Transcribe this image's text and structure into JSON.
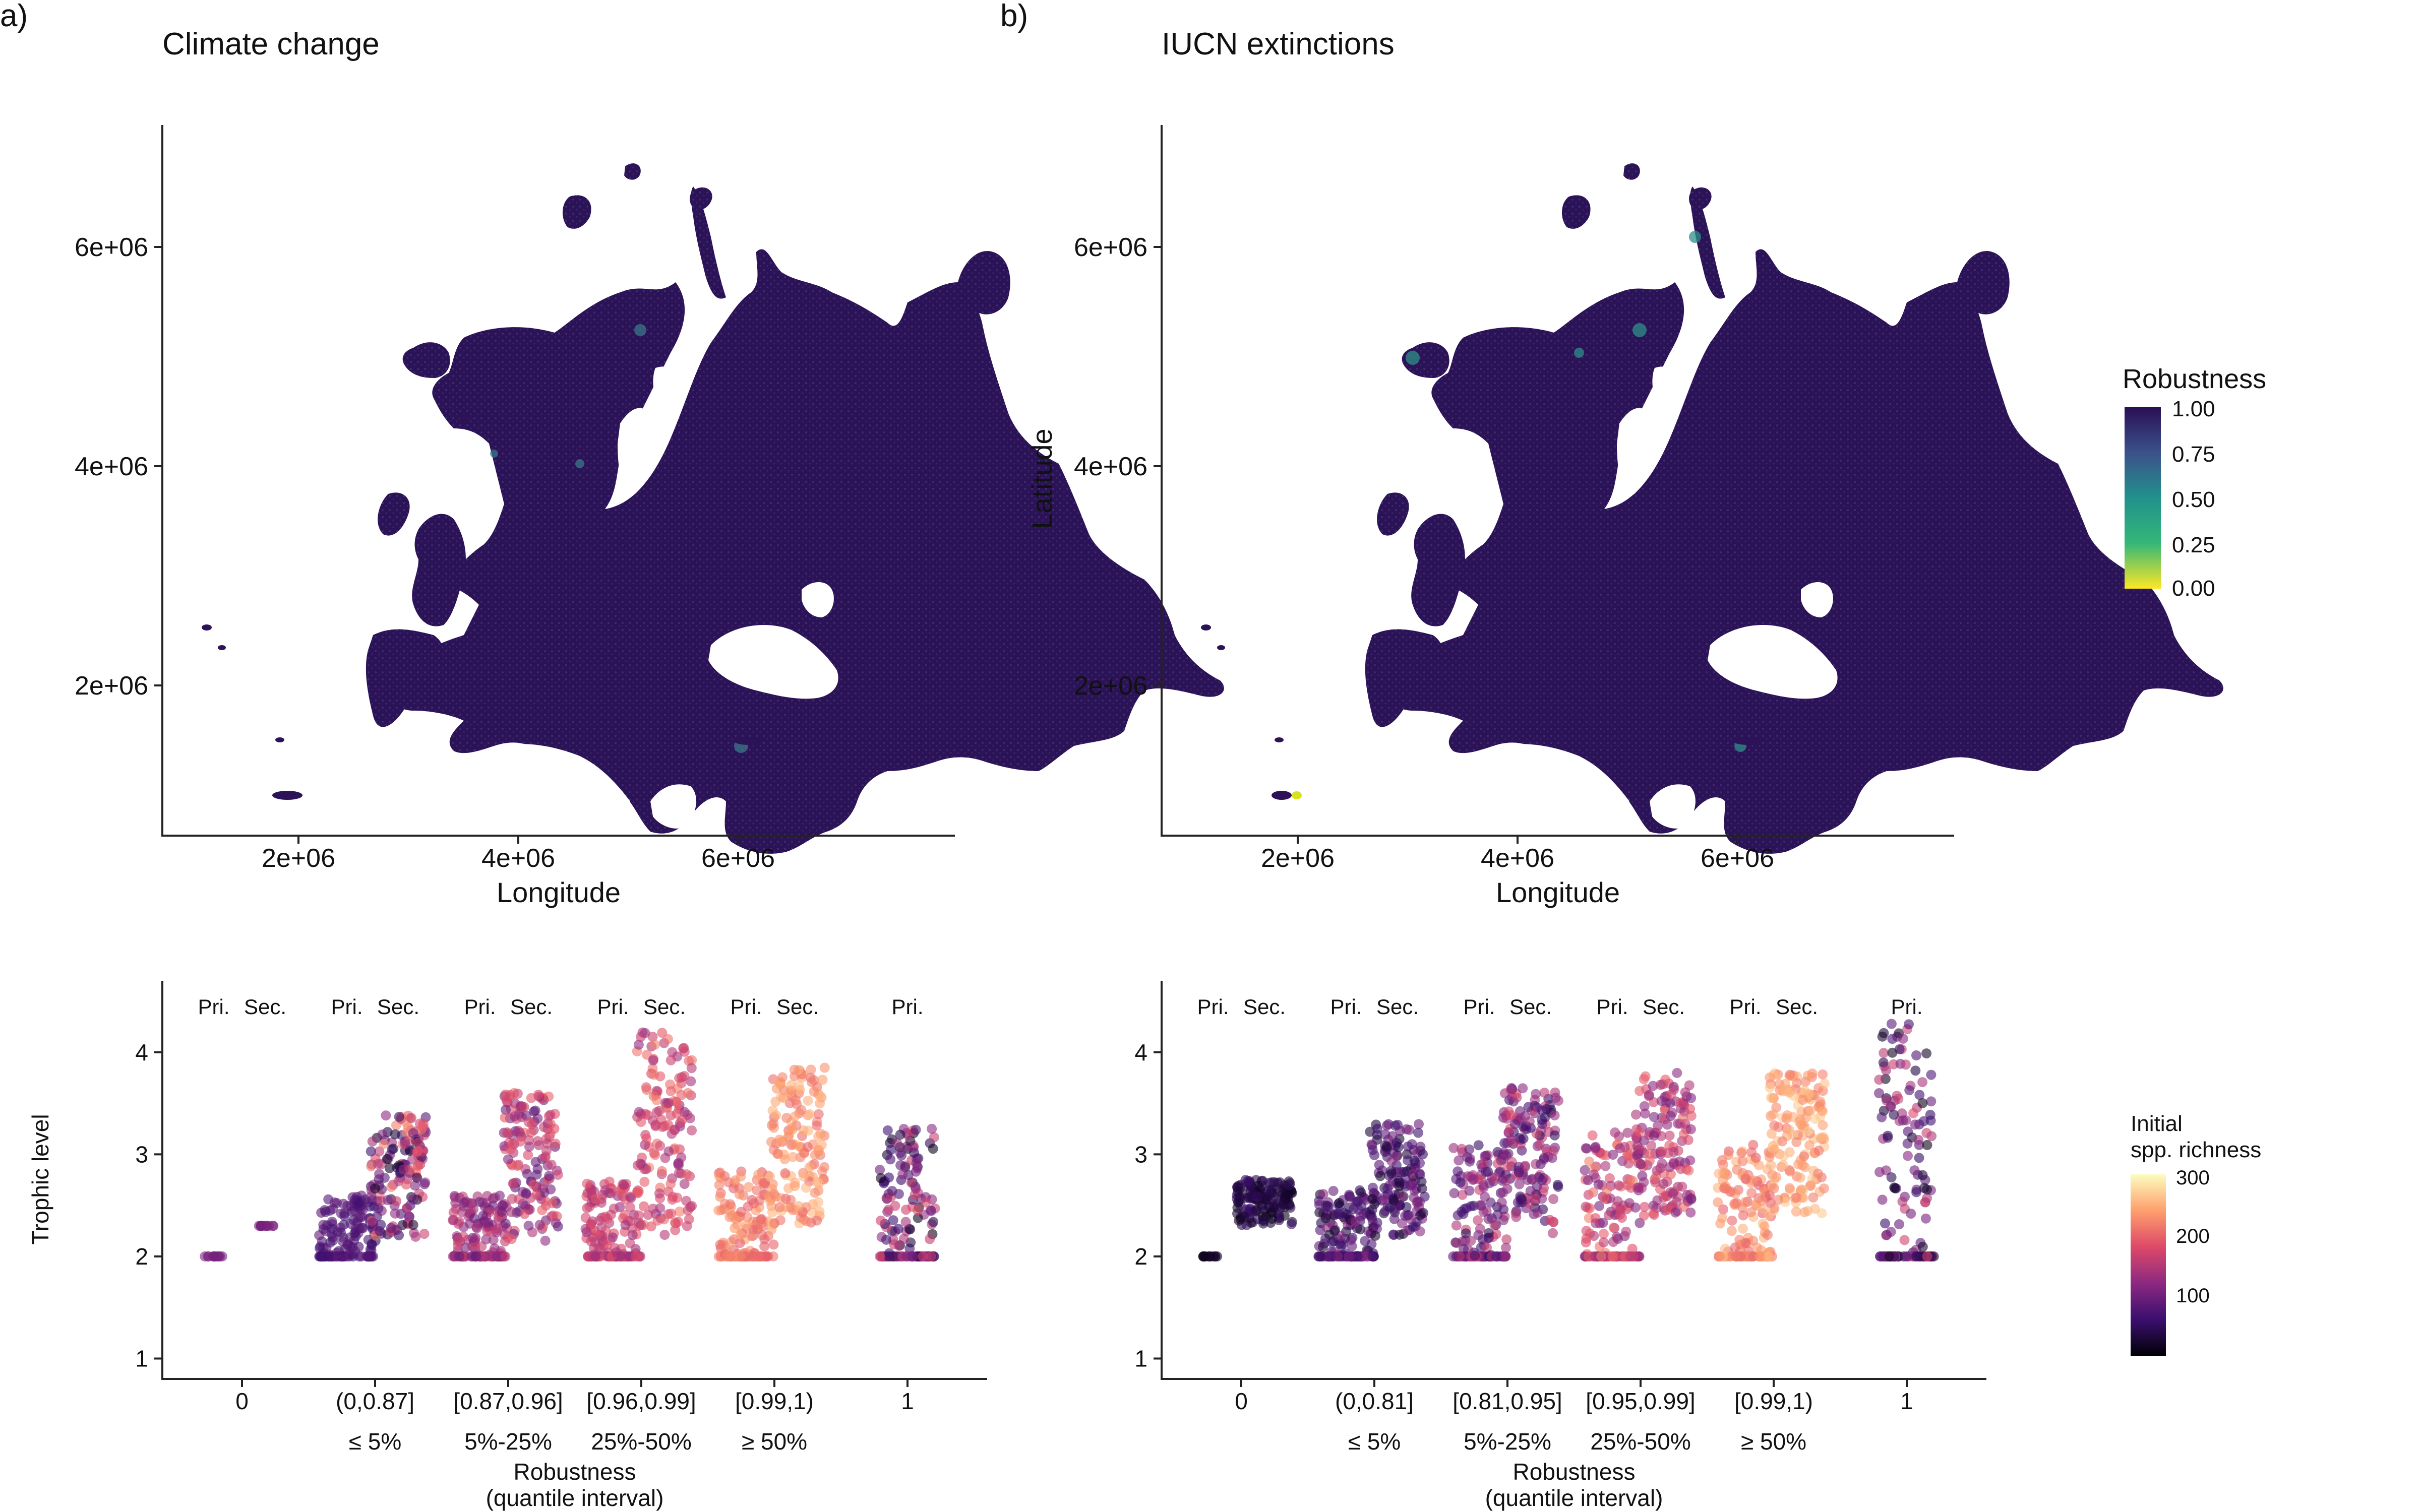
{
  "panels": [
    {
      "label": "a)",
      "map_title": "Climate change",
      "map_x_label": "Longitude",
      "map_y_label": "",
      "map_x_ticks": [
        "2e+06",
        "4e+06",
        "6e+06"
      ],
      "map_y_ticks": [
        "2e+06",
        "4e+06",
        "6e+06"
      ]
    },
    {
      "label": "b)",
      "map_title": "IUCN extinctions",
      "map_x_label": "Longitude",
      "map_y_label": "Latitude",
      "map_x_ticks": [
        "2e+06",
        "4e+06",
        "6e+06"
      ],
      "map_y_ticks": [
        "2e+06",
        "4e+06",
        "6e+06"
      ]
    }
  ],
  "map_legend": {
    "title": "Robustness",
    "ticks": [
      "1.00",
      "0.75",
      "0.50",
      "0.25",
      "0.00"
    ],
    "colors": [
      "#fde725",
      "#35b779",
      "#21918c",
      "#3b528b",
      "#2a0f55"
    ]
  },
  "strip_legend": {
    "title_line1": "Initial",
    "title_line2": "spp. richness",
    "ticks": [
      "300",
      "200",
      "100"
    ],
    "colors": [
      "#000004",
      "#3b0f70",
      "#8c2981",
      "#de4968",
      "#fe9f6d",
      "#fcfdbf"
    ]
  },
  "chart_data": [
    {
      "type": "scatter",
      "title": "",
      "xlabel": "Robustness (quantile interval)",
      "xlabel_line1": "Robustness",
      "xlabel_line2": "(quantile interval)",
      "ylabel": "Trophic level",
      "ylim": [
        1,
        4
      ],
      "yticks": [
        "1",
        "2",
        "3",
        "4"
      ],
      "categories": [
        "0",
        "(0,0.87]",
        "[0.87,0.96]",
        "[0.96,0.99]",
        "[0.99,1)",
        "1"
      ],
      "category_quantiles": [
        "",
        "≤ 5%",
        "5%-25%",
        "25%-50%",
        "≥ 50%",
        ""
      ],
      "group_labels": [
        [
          "Pri.",
          "Sec."
        ],
        [
          "Pri.",
          "Sec."
        ],
        [
          "Pri.",
          "Sec."
        ],
        [
          "Pri.",
          "Sec."
        ],
        [
          "Pri.",
          "Sec."
        ],
        [
          "Pri."
        ]
      ],
      "groups": [
        {
          "category": "0",
          "group": "Pri.",
          "min": 2.0,
          "max": 2.0,
          "richness": [
            100,
            110
          ]
        },
        {
          "category": "0",
          "group": "Sec.",
          "min": 2.3,
          "max": 2.3,
          "richness": [
            100,
            110
          ]
        },
        {
          "category": "(0,0.87]",
          "group": "Pri.",
          "min": 2.0,
          "max": 2.6,
          "richness": [
            60,
            90
          ]
        },
        {
          "category": "(0,0.87]",
          "group": "Sec.",
          "min": 2.15,
          "max": 3.4,
          "richness": [
            20,
            230
          ]
        },
        {
          "category": "[0.87,0.96]",
          "group": "Pri.",
          "min": 2.0,
          "max": 2.6,
          "richness": [
            90,
            170
          ]
        },
        {
          "category": "[0.87,0.96]",
          "group": "Sec.",
          "min": 2.15,
          "max": 3.6,
          "richness": [
            80,
            200
          ]
        },
        {
          "category": "[0.96,0.99]",
          "group": "Pri.",
          "min": 2.0,
          "max": 2.75,
          "richness": [
            120,
            190
          ]
        },
        {
          "category": "[0.96,0.99]",
          "group": "Sec.",
          "min": 2.2,
          "max": 4.2,
          "richness": [
            120,
            220
          ]
        },
        {
          "category": "[0.99,1)",
          "group": "Pri.",
          "min": 2.0,
          "max": 2.85,
          "richness": [
            190,
            240
          ]
        },
        {
          "category": "[0.99,1)",
          "group": "Sec.",
          "min": 2.3,
          "max": 3.85,
          "richness": [
            200,
            260
          ]
        },
        {
          "category": "1",
          "group": "Pri.",
          "min": 2.0,
          "max": 3.25,
          "richness": [
            10,
            180
          ]
        }
      ]
    },
    {
      "type": "scatter",
      "title": "",
      "xlabel": "Robustness (quantile interval)",
      "xlabel_line1": "Robustness",
      "xlabel_line2": "(quantile interval)",
      "ylabel": "",
      "ylim": [
        1,
        4
      ],
      "yticks": [
        "1",
        "2",
        "3",
        "4"
      ],
      "categories": [
        "0",
        "(0,0.81]",
        "[0.81,0.95]",
        "[0.95,0.99]",
        "[0.99,1)",
        "1"
      ],
      "category_quantiles": [
        "",
        "≤ 5%",
        "5%-25%",
        "25%-50%",
        "≥ 50%",
        ""
      ],
      "group_labels": [
        [
          "Pri.",
          "Sec."
        ],
        [
          "Pri.",
          "Sec."
        ],
        [
          "Pri.",
          "Sec."
        ],
        [
          "Pri.",
          "Sec."
        ],
        [
          "Pri.",
          "Sec."
        ],
        [
          "Pri."
        ]
      ],
      "groups": [
        {
          "category": "0",
          "group": "Pri.",
          "min": 2.0,
          "max": 2.0,
          "richness": [
            5,
            40
          ]
        },
        {
          "category": "0",
          "group": "Sec.",
          "min": 2.3,
          "max": 2.75,
          "richness": [
            10,
            60
          ]
        },
        {
          "category": "(0,0.81]",
          "group": "Pri.",
          "min": 2.0,
          "max": 2.65,
          "richness": [
            20,
            120
          ]
        },
        {
          "category": "(0,0.81]",
          "group": "Sec.",
          "min": 2.2,
          "max": 3.3,
          "richness": [
            20,
            120
          ]
        },
        {
          "category": "[0.81,0.95]",
          "group": "Pri.",
          "min": 2.0,
          "max": 3.1,
          "richness": [
            40,
            170
          ]
        },
        {
          "category": "[0.81,0.95]",
          "group": "Sec.",
          "min": 2.2,
          "max": 3.65,
          "richness": [
            40,
            180
          ]
        },
        {
          "category": "[0.95,0.99]",
          "group": "Pri.",
          "min": 2.0,
          "max": 3.25,
          "richness": [
            100,
            220
          ]
        },
        {
          "category": "[0.95,0.99]",
          "group": "Sec.",
          "min": 2.35,
          "max": 3.8,
          "richness": [
            100,
            200
          ]
        },
        {
          "category": "[0.99,1)",
          "group": "Pri.",
          "min": 2.0,
          "max": 3.1,
          "richness": [
            190,
            260
          ]
        },
        {
          "category": "[0.99,1)",
          "group": "Sec.",
          "min": 2.4,
          "max": 3.8,
          "richness": [
            210,
            270
          ]
        },
        {
          "category": "1",
          "group": "Pri.",
          "min": 2.0,
          "max": 4.3,
          "richness": [
            10,
            180
          ]
        }
      ]
    }
  ]
}
